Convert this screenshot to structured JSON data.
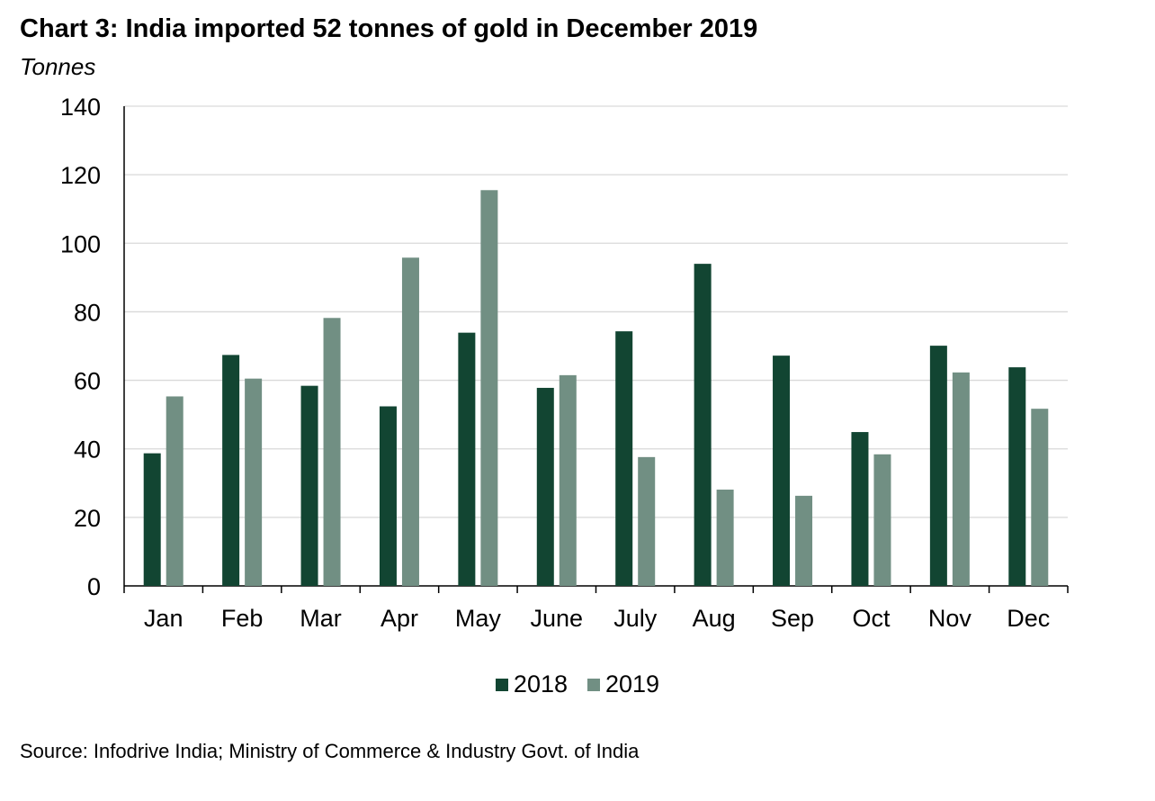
{
  "chart_data": {
    "type": "bar",
    "title": "Chart 3: India imported 52 tonnes of gold in December 2019",
    "ylabel": "Tonnes",
    "xlabel": "",
    "ylim": [
      0,
      140
    ],
    "yticks": [
      0,
      20,
      40,
      60,
      80,
      100,
      120,
      140
    ],
    "grid": true,
    "legend_position": "bottom",
    "categories": [
      "Jan",
      "Feb",
      "Mar",
      "Apr",
      "May",
      "June",
      "July",
      "Aug",
      "Sep",
      "Oct",
      "Nov",
      "Dec"
    ],
    "series": [
      {
        "name": "2018",
        "color": "#124532",
        "values": [
          38.7,
          67.4,
          58.4,
          52.4,
          73.9,
          57.8,
          74.3,
          94.0,
          67.2,
          44.9,
          70.1,
          63.8
        ]
      },
      {
        "name": "2019",
        "color": "#718f83",
        "values": [
          55.3,
          60.5,
          78.2,
          95.8,
          115.5,
          61.5,
          37.6,
          28.1,
          26.3,
          38.4,
          62.3,
          51.7
        ]
      }
    ],
    "source": "Source: Infodrive India; Ministry of Commerce &  Industry Govt. of India"
  }
}
